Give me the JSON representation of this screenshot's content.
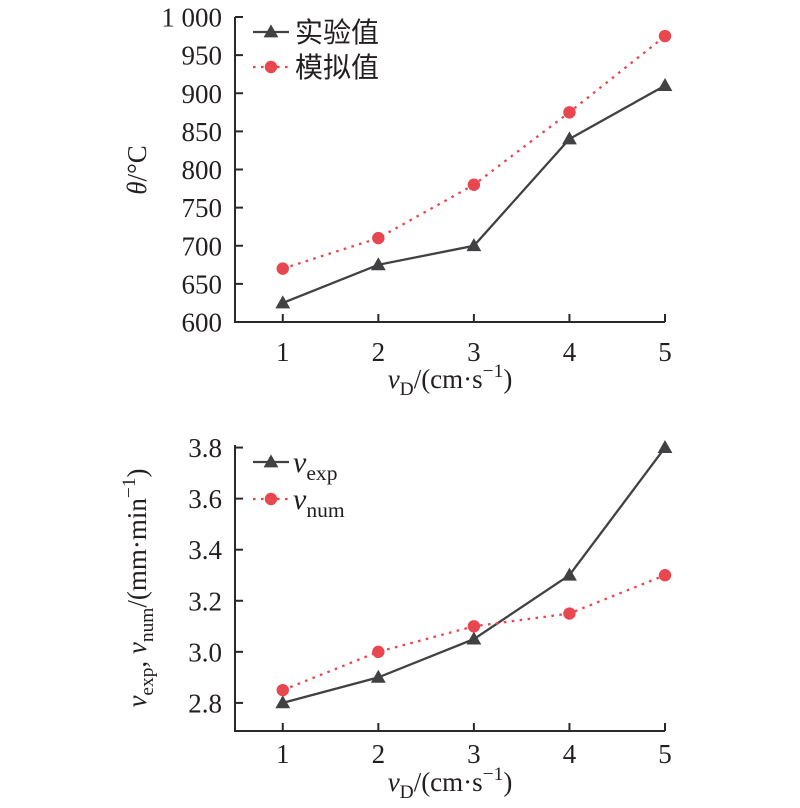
{
  "page": {
    "background": "#ffffff"
  },
  "colors": {
    "experimental_series": "#414042",
    "simulated_series": "#e8474f",
    "axis": "#2b2829",
    "text": "#231f20"
  },
  "chart_data": [
    {
      "id": "temperature-chart",
      "type": "line",
      "x": [
        1,
        2,
        3,
        4,
        5
      ],
      "xticks": {
        "values": [
          1,
          2,
          3,
          4,
          5
        ],
        "labels": [
          "1",
          "2",
          "3",
          "4",
          "5"
        ]
      },
      "yticks": {
        "values": [
          600,
          650,
          700,
          750,
          800,
          850,
          900,
          950,
          1000
        ],
        "labels": [
          "600",
          "650",
          "700",
          "750",
          "800",
          "850",
          "900",
          "950",
          "1 000"
        ]
      },
      "ylim": [
        600,
        1000
      ],
      "axis_value_window": {
        "x": [
          0.5,
          5
        ],
        "y": [
          600,
          1000
        ]
      },
      "xlabel": "vD/(cm·s−1)",
      "xlabel_parts": [
        {
          "t": "v",
          "s": "i"
        },
        {
          "t": "D",
          "s": "sub"
        },
        {
          "t": "/(cm·s",
          "s": ""
        },
        {
          "t": "−1",
          "s": "sup"
        },
        {
          "t": ")",
          "s": ""
        }
      ],
      "ylabel": "θ/°C",
      "ylabel_parts": [
        {
          "t": "θ",
          "s": "i"
        },
        {
          "t": "/°C",
          "s": ""
        }
      ],
      "legend_position": "upper-left",
      "grid": false,
      "series": [
        {
          "key": "experimental",
          "name": "实验值",
          "name_parts": [
            {
              "t": "实验值",
              "s": ""
            }
          ],
          "marker": "triangle",
          "line": "solid",
          "color_key": "experimental_series",
          "values": [
            625,
            675,
            700,
            840,
            910
          ]
        },
        {
          "key": "simulated",
          "name": "模拟值",
          "name_parts": [
            {
              "t": "模拟值",
              "s": ""
            }
          ],
          "marker": "circle",
          "line": "dotted",
          "color_key": "simulated_series",
          "values": [
            670,
            710,
            780,
            875,
            975
          ]
        }
      ]
    },
    {
      "id": "velocity-chart",
      "type": "line",
      "x": [
        1,
        2,
        3,
        4,
        5
      ],
      "xticks": {
        "values": [
          1,
          2,
          3,
          4,
          5
        ],
        "labels": [
          "1",
          "2",
          "3",
          "4",
          "5"
        ]
      },
      "yticks": {
        "values": [
          2.8,
          3.0,
          3.2,
          3.4,
          3.6,
          3.8
        ],
        "labels": [
          "2.8",
          "3.0",
          "3.2",
          "3.4",
          "3.6",
          "3.8"
        ]
      },
      "ylim": [
        2.8,
        3.8
      ],
      "axis_value_window": {
        "x": [
          0.5,
          5
        ],
        "y": [
          2.69,
          3.81
        ]
      },
      "xlabel": "vD/(cm·s−1)",
      "xlabel_parts": [
        {
          "t": "v",
          "s": "i"
        },
        {
          "t": "D",
          "s": "sub"
        },
        {
          "t": "/(cm·s",
          "s": ""
        },
        {
          "t": "−1",
          "s": "sup"
        },
        {
          "t": ")",
          "s": ""
        }
      ],
      "ylabel": "vexp, vnum/(mm·min−1)",
      "ylabel_parts": [
        {
          "t": "v",
          "s": "i"
        },
        {
          "t": "exp",
          "s": "sub"
        },
        {
          "t": ", ",
          "s": ""
        },
        {
          "t": "v",
          "s": "i"
        },
        {
          "t": "num",
          "s": "sub"
        },
        {
          "t": "/(mm·min",
          "s": ""
        },
        {
          "t": "−1",
          "s": "sup"
        },
        {
          "t": ")",
          "s": ""
        }
      ],
      "legend_position": "upper-left",
      "grid": false,
      "series": [
        {
          "key": "v_exp",
          "name": "vexp",
          "name_parts": [
            {
              "t": "v",
              "s": "i"
            },
            {
              "t": "exp",
              "s": "sub"
            }
          ],
          "marker": "triangle",
          "line": "solid",
          "color_key": "experimental_series",
          "values": [
            2.8,
            2.9,
            3.05,
            3.3,
            3.8
          ]
        },
        {
          "key": "v_num",
          "name": "vnum",
          "name_parts": [
            {
              "t": "v",
              "s": "i"
            },
            {
              "t": "num",
              "s": "sub"
            }
          ],
          "marker": "circle",
          "line": "dotted",
          "color_key": "simulated_series",
          "values": [
            2.85,
            3.0,
            3.1,
            3.15,
            3.3
          ]
        }
      ]
    }
  ]
}
